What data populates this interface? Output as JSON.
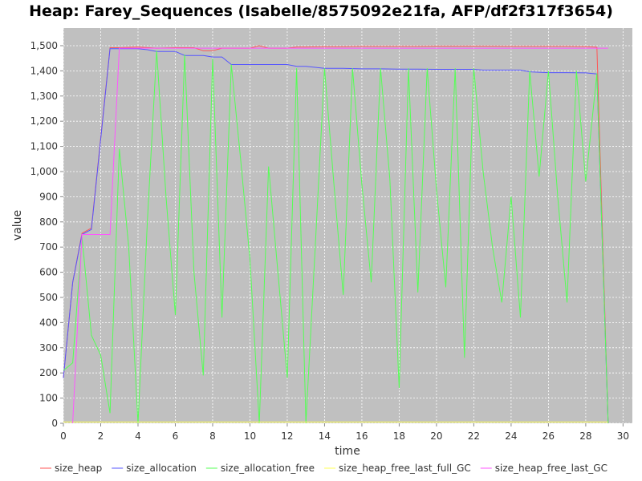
{
  "chart_data": {
    "type": "line",
    "title": "Heap: Farey_Sequences (Isabelle/8575092e21fa, AFP/df2f317f3654)",
    "xlabel": "time",
    "ylabel": "value",
    "xlim": [
      0,
      30.5
    ],
    "ylim": [
      0,
      1570
    ],
    "xticks": [
      0,
      2,
      4,
      6,
      8,
      10,
      12,
      14,
      16,
      18,
      20,
      22,
      24,
      26,
      28,
      30
    ],
    "yticks": [
      0,
      100,
      200,
      300,
      400,
      500,
      600,
      700,
      800,
      900,
      1000,
      1100,
      1200,
      1300,
      1400,
      1500
    ],
    "ytick_labels": [
      "0",
      "100",
      "200",
      "300",
      "400",
      "500",
      "600",
      "700",
      "800",
      "900",
      "1,000",
      "1,100",
      "1,200",
      "1,300",
      "1,400",
      "1,500"
    ],
    "grid": true,
    "legend_position": "bottom",
    "background": "#c0c0c0",
    "series": [
      {
        "name": "size_heap",
        "color": "#ff5555",
        "x": [
          0,
          0.5,
          1,
          1.5,
          2.5,
          3,
          4,
          5,
          6,
          7,
          7.5,
          8,
          8.5,
          9,
          10,
          10.5,
          11,
          12,
          12.5,
          13,
          14,
          15,
          16,
          17,
          18,
          19,
          20,
          21,
          22,
          23,
          24,
          25,
          26,
          27,
          28,
          28.6,
          29.2
        ],
        "values": [
          180,
          560,
          755,
          775,
          1492,
          1492,
          1495,
          1490,
          1492,
          1492,
          1480,
          1480,
          1490,
          1490,
          1490,
          1500,
          1490,
          1490,
          1495,
          1495,
          1496,
          1496,
          1497,
          1497,
          1497,
          1497,
          1498,
          1498,
          1498,
          1498,
          1497,
          1497,
          1497,
          1497,
          1496,
          1494,
          0
        ]
      },
      {
        "name": "size_allocation",
        "color": "#5555ff",
        "x": [
          0,
          0.5,
          1,
          1.5,
          2.5,
          3,
          4,
          4.5,
          5,
          6,
          6.5,
          7,
          7.5,
          8,
          8.5,
          9,
          10,
          11,
          12,
          12.5,
          13,
          13.5,
          14,
          15,
          16,
          17,
          18,
          19,
          20,
          21,
          22,
          22.5,
          23,
          24,
          24.5,
          25,
          26,
          27,
          28,
          28.6,
          29.2
        ],
        "values": [
          180,
          560,
          750,
          770,
          1488,
          1488,
          1488,
          1484,
          1477,
          1477,
          1461,
          1461,
          1461,
          1455,
          1455,
          1425,
          1425,
          1425,
          1425,
          1418,
          1418,
          1414,
          1410,
          1410,
          1408,
          1408,
          1407,
          1407,
          1406,
          1406,
          1406,
          1403,
          1403,
          1403,
          1403,
          1396,
          1393,
          1393,
          1392,
          1388,
          0
        ]
      },
      {
        "name": "size_allocation_free",
        "color": "#55ff55",
        "x": [
          0,
          0.5,
          1,
          1.5,
          2,
          2.5,
          3,
          3.5,
          4,
          4.5,
          5,
          5.5,
          6,
          6.5,
          7,
          7.5,
          8,
          8.5,
          9,
          9.5,
          10,
          10.5,
          11,
          11.5,
          12,
          12.5,
          13,
          13.5,
          14,
          14.5,
          15,
          15.5,
          16,
          16.5,
          17,
          17.5,
          18,
          18.5,
          19,
          19.5,
          20,
          20.5,
          21,
          21.5,
          22,
          22.5,
          23,
          23.5,
          24,
          24.5,
          25,
          25.5,
          26,
          26.5,
          27,
          27.5,
          28,
          28.6,
          29.2
        ],
        "values": [
          210,
          240,
          740,
          350,
          270,
          40,
          1090,
          700,
          0,
          800,
          1480,
          900,
          430,
          1465,
          600,
          190,
          1448,
          420,
          1425,
          1050,
          650,
          0,
          1020,
          600,
          180,
          1410,
          0,
          700,
          1410,
          950,
          510,
          1410,
          950,
          560,
          1410,
          970,
          140,
          1410,
          520,
          1410,
          930,
          540,
          1410,
          260,
          1410,
          1000,
          700,
          480,
          900,
          420,
          1400,
          980,
          1400,
          900,
          480,
          1400,
          960,
          1390,
          0
        ]
      },
      {
        "name": "size_heap_free_last_full_GC",
        "color": "#ffff55",
        "x": [
          0,
          29.2
        ],
        "values": [
          5,
          5
        ]
      },
      {
        "name": "size_heap_free_last_GC",
        "color": "#ff55ff",
        "x": [
          0.5,
          1,
          2.5,
          3,
          29.2
        ],
        "values": [
          0,
          750,
          750,
          1490,
          1490
        ]
      }
    ]
  }
}
